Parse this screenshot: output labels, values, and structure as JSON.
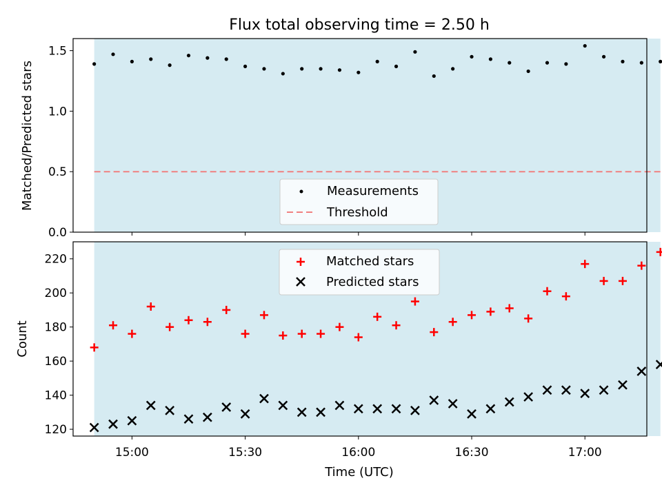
{
  "title": "Flux total observing time = 2.50 h",
  "colors": {
    "shade": "#add8e6",
    "threshold": "#f08080",
    "matched": "#ff0000",
    "predicted": "#000000",
    "measurements": "#000000"
  },
  "chart_data": [
    {
      "type": "scatter",
      "panel": "top",
      "ylabel": "Matched/Predicted stars",
      "ylim": [
        0,
        1.6
      ],
      "yticks": [
        0.0,
        0.5,
        1.0,
        1.5
      ],
      "ytick_labels": [
        "0.0",
        "0.5",
        "1.0",
        "1.5"
      ],
      "x_unit": "minutes after 14:30 UTC",
      "xlim": [
        14.4,
        166.4
      ],
      "shaded_span": [
        20,
        170
      ],
      "legend_position": "lower center",
      "threshold": {
        "name": "Threshold",
        "value": 0.5,
        "style": "dashed"
      },
      "series": [
        {
          "name": "Measurements",
          "marker": "dot",
          "x": [
            20,
            25,
            30,
            35,
            40,
            45,
            50,
            55,
            60,
            65,
            70,
            75,
            80,
            85,
            90,
            95,
            100,
            105,
            110,
            115,
            120,
            125,
            130,
            135,
            140,
            145,
            150,
            155,
            160,
            165,
            170
          ],
          "y": [
            1.39,
            1.47,
            1.41,
            1.43,
            1.38,
            1.46,
            1.44,
            1.43,
            1.37,
            1.35,
            1.31,
            1.35,
            1.35,
            1.34,
            1.32,
            1.41,
            1.37,
            1.49,
            1.29,
            1.35,
            1.45,
            1.43,
            1.4,
            1.33,
            1.4,
            1.39,
            1.54,
            1.45,
            1.41,
            1.4,
            1.41
          ]
        }
      ]
    },
    {
      "type": "scatter",
      "panel": "bottom",
      "ylabel": "Count",
      "xlabel": "Time (UTC)",
      "ylim": [
        116,
        230
      ],
      "yticks": [
        120,
        140,
        160,
        180,
        200,
        220
      ],
      "ytick_labels": [
        "120",
        "140",
        "160",
        "180",
        "200",
        "220"
      ],
      "xticks": [
        30,
        60,
        90,
        120,
        150
      ],
      "xtick_labels": [
        "15:00",
        "15:30",
        "16:00",
        "16:30",
        "17:00"
      ],
      "x_unit": "minutes after 14:30 UTC",
      "xlim": [
        14.4,
        166.4
      ],
      "shaded_span": [
        20,
        170
      ],
      "legend_position": "upper center",
      "series": [
        {
          "name": "Matched stars",
          "marker": "plus",
          "x": [
            20,
            25,
            30,
            35,
            40,
            45,
            50,
            55,
            60,
            65,
            70,
            75,
            80,
            85,
            90,
            95,
            100,
            105,
            110,
            115,
            120,
            125,
            130,
            135,
            140,
            145,
            150,
            155,
            160,
            165,
            170
          ],
          "y": [
            168,
            181,
            176,
            192,
            180,
            184,
            183,
            190,
            176,
            187,
            175,
            176,
            176,
            180,
            174,
            186,
            181,
            195,
            177,
            183,
            187,
            189,
            191,
            185,
            201,
            198,
            217,
            207,
            207,
            216,
            224
          ]
        },
        {
          "name": "Predicted stars",
          "marker": "x",
          "x": [
            20,
            25,
            30,
            35,
            40,
            45,
            50,
            55,
            60,
            65,
            70,
            75,
            80,
            85,
            90,
            95,
            100,
            105,
            110,
            115,
            120,
            125,
            130,
            135,
            140,
            145,
            150,
            155,
            160,
            165,
            170
          ],
          "y": [
            121,
            123,
            125,
            134,
            131,
            126,
            127,
            133,
            129,
            138,
            134,
            130,
            130,
            134,
            132,
            132,
            132,
            131,
            137,
            135,
            129,
            132,
            136,
            139,
            143,
            143,
            141,
            143,
            146,
            154,
            158
          ]
        }
      ]
    }
  ]
}
